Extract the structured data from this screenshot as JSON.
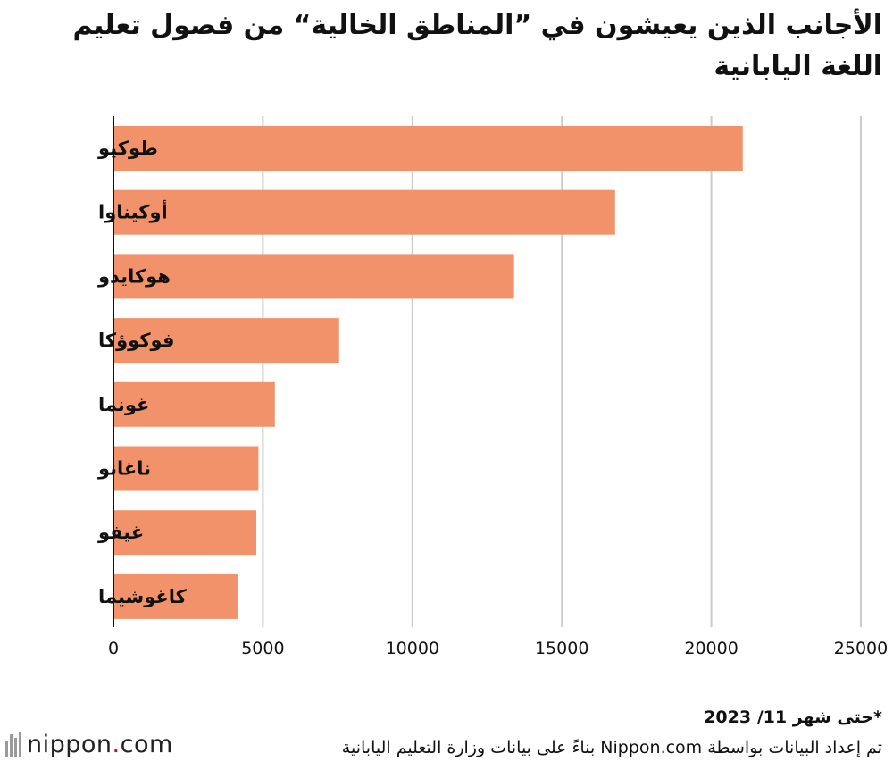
{
  "chart_data": {
    "type": "bar",
    "orientation": "horizontal",
    "title": "الأجانب الذين يعيشون في ”المناطق الخالية“ من فصول تعليم اللغة اليابانية",
    "categories": [
      "طوكيو",
      "أوكيناوا",
      "هوكايدو",
      "فوكوؤكا",
      "غونما",
      "ناغانو",
      "غيفو",
      "كاغوشيما"
    ],
    "values": [
      21050,
      16780,
      13400,
      7550,
      5400,
      4850,
      4780,
      4150
    ],
    "xlim": [
      0,
      25000
    ],
    "xticks": [
      "0",
      "5000",
      "10000",
      "15000",
      "20000",
      "25000"
    ],
    "grid": true,
    "bar_color": "#f1926b",
    "xlabel": "",
    "ylabel": ""
  },
  "footnote": "*حتى شهر 11/ 2023",
  "source": "تم إعداد البيانات بواسطة Nippon.com بناءً على بيانات وزارة التعليم اليابانية",
  "logo": {
    "name": "nippon",
    "dot": ".",
    "tld": "com"
  }
}
